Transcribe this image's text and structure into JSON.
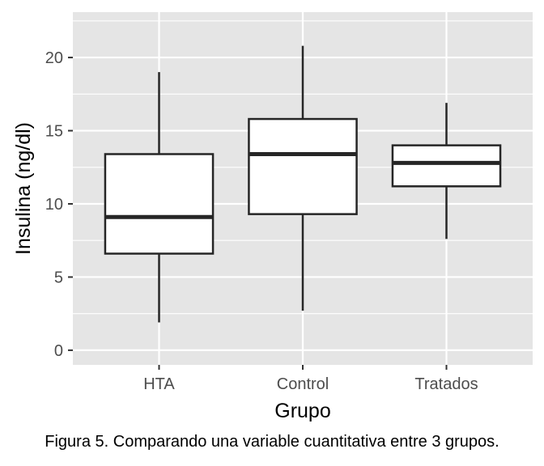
{
  "chart_data": {
    "type": "boxplot",
    "xlabel": "Grupo",
    "ylabel": "Insulina (ng/dl)",
    "ylim": [
      -1.0,
      23.1
    ],
    "yticks": [
      0,
      5,
      10,
      15,
      20
    ],
    "categories": [
      "HTA",
      "Control",
      "Tratados"
    ],
    "boxes": [
      {
        "name": "HTA",
        "min": 1.9,
        "q1": 6.6,
        "median": 9.1,
        "q3": 13.4,
        "max": 19.0
      },
      {
        "name": "Control",
        "min": 2.7,
        "q1": 9.3,
        "median": 13.4,
        "q3": 15.8,
        "max": 20.8
      },
      {
        "name": "Tratados",
        "min": 7.6,
        "q1": 11.2,
        "median": 12.8,
        "q3": 14.0,
        "max": 16.9
      }
    ],
    "grid": true,
    "colors": {
      "panel": "#e5e5e5",
      "grid": "#ffffff",
      "box_fill": "#ffffff",
      "box_line": "#262626"
    }
  },
  "caption": "Figura 5. Comparando una variable cuantitativa entre 3 grupos."
}
